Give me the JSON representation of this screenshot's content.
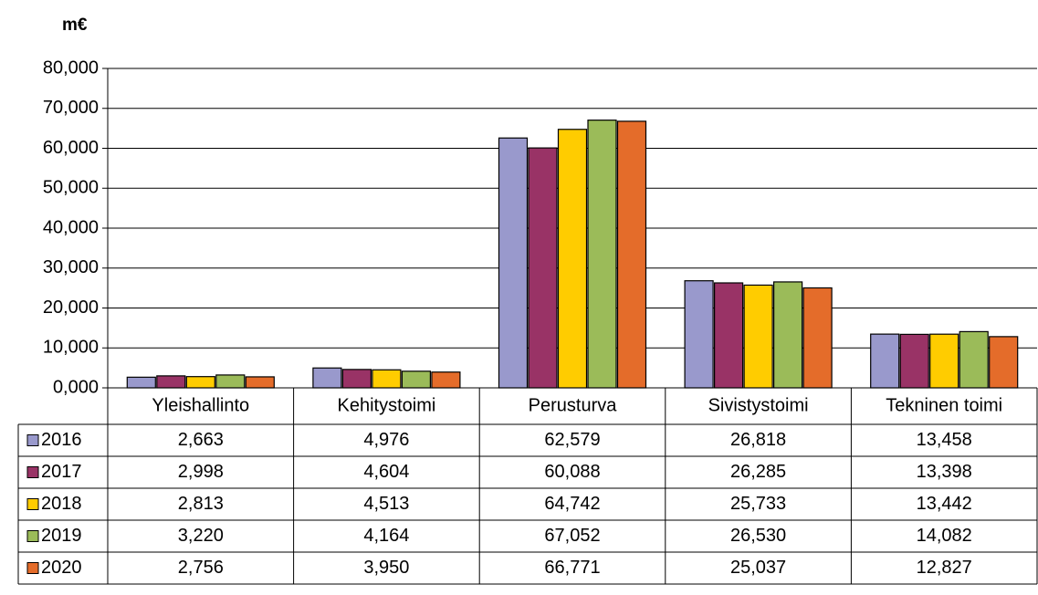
{
  "chart_data": {
    "type": "bar",
    "title": "m€",
    "categories": [
      "Yleishallinto",
      "Kehitystoimi",
      "Perusturva",
      "Sivistystoimi",
      "Tekninen toimi"
    ],
    "series": [
      {
        "name": "2016",
        "color": "#9999cc",
        "values": [
          2.663,
          4.976,
          62.579,
          26.818,
          13.458
        ],
        "value_labels": [
          "2,663",
          "4,976",
          "62,579",
          "26,818",
          "13,458"
        ]
      },
      {
        "name": "2017",
        "color": "#993366",
        "values": [
          2.998,
          4.604,
          60.088,
          26.285,
          13.398
        ],
        "value_labels": [
          "2,998",
          "4,604",
          "60,088",
          "26,285",
          "13,398"
        ]
      },
      {
        "name": "2018",
        "color": "#ffcc00",
        "values": [
          2.813,
          4.513,
          64.742,
          25.733,
          13.442
        ],
        "value_labels": [
          "2,813",
          "4,513",
          "64,742",
          "25,733",
          "13,442"
        ]
      },
      {
        "name": "2019",
        "color": "#9bbb59",
        "values": [
          3.22,
          4.164,
          67.052,
          26.53,
          14.082
        ],
        "value_labels": [
          "3,220",
          "4,164",
          "67,052",
          "26,530",
          "14,082"
        ]
      },
      {
        "name": "2020",
        "color": "#e46c2a",
        "values": [
          2.756,
          3.95,
          66.771,
          25.037,
          12.827
        ],
        "value_labels": [
          "2,756",
          "3,950",
          "66,771",
          "25,037",
          "12,827"
        ]
      }
    ],
    "ylim": [
      0,
      80
    ],
    "yticks": [
      {
        "value": 0,
        "label": "0,000"
      },
      {
        "value": 10,
        "label": "10,000"
      },
      {
        "value": 20,
        "label": "20,000"
      },
      {
        "value": 30,
        "label": "30,000"
      },
      {
        "value": 40,
        "label": "40,000"
      },
      {
        "value": 50,
        "label": "50,000"
      },
      {
        "value": 60,
        "label": "60,000"
      },
      {
        "value": 70,
        "label": "70,000"
      },
      {
        "value": 80,
        "label": "80,000"
      }
    ],
    "grid": true
  }
}
